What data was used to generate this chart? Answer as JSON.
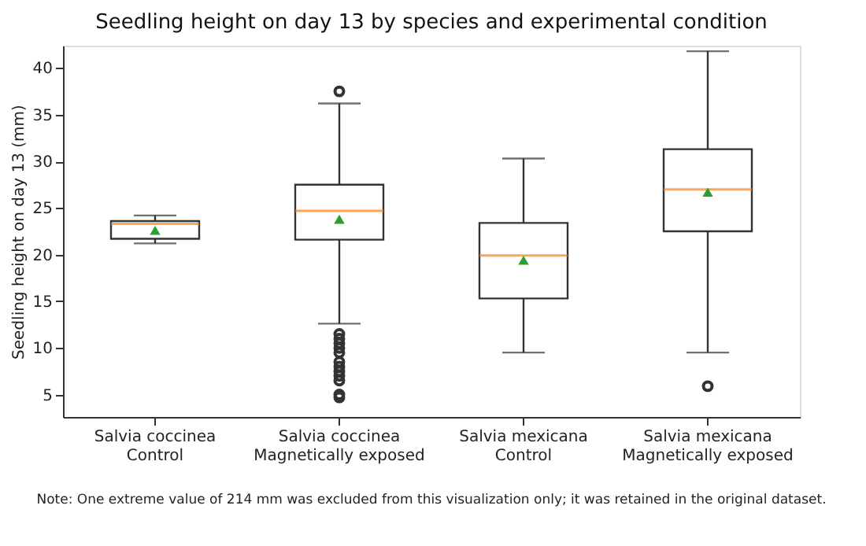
{
  "chart_data": {
    "type": "box",
    "title": "Seedling height on day 13 by species and experimental condition",
    "ylabel": "Seedling height on day 13 (mm)",
    "categories": [
      "Salvia coccinea\nControl",
      "Salvia coccinea\nMagnetically exposed",
      "Salvia mexicana\nControl",
      "Salvia mexicana\nMagnetically exposed"
    ],
    "boxes": [
      {
        "low": 21.2,
        "q1": 21.7,
        "median": 23.3,
        "q3": 23.6,
        "high": 24.2,
        "mean": 22.6
      },
      {
        "low": 12.6,
        "q1": 21.6,
        "median": 24.7,
        "q3": 27.5,
        "high": 36.2,
        "mean": 23.8,
        "outliers": [
          37.5,
          11.5,
          11.0,
          10.5,
          10.0,
          9.5,
          8.5,
          8.0,
          7.5,
          7.0,
          6.5,
          5.0,
          4.7
        ]
      },
      {
        "low": 9.5,
        "q1": 15.3,
        "median": 19.9,
        "q3": 23.4,
        "high": 30.3,
        "mean": 19.4
      },
      {
        "low": 9.5,
        "q1": 22.5,
        "median": 27.0,
        "q3": 31.3,
        "high": 41.8,
        "mean": 26.7,
        "outliers": [
          5.9
        ]
      }
    ],
    "ylim": [
      2.6,
      42.4
    ],
    "yticks": [
      5,
      10,
      15,
      20,
      25,
      30,
      35,
      40
    ],
    "grid": false,
    "annotations": [
      "Note: One extreme value of 214 mm was excluded from this visualization only; it was retained in the original dataset."
    ]
  }
}
